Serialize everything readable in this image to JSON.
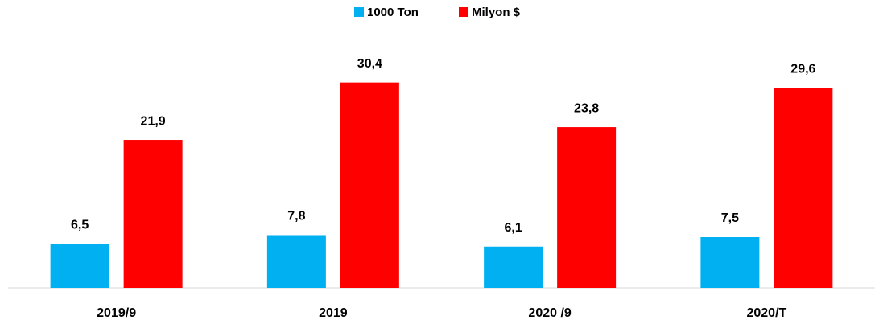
{
  "chart_data": {
    "type": "bar",
    "categories": [
      "2019/9",
      "2019",
      "2020 /9",
      "2020/T"
    ],
    "series": [
      {
        "name": "1000 Ton",
        "color": "#00b0f0",
        "values": [
          6.5,
          7.8,
          6.1,
          7.5
        ],
        "value_labels": [
          "6,5",
          "7,8",
          "6,1",
          "7,5"
        ]
      },
      {
        "name": "Milyon $",
        "color": "#ff0000",
        "values": [
          21.9,
          30.4,
          23.8,
          29.6
        ],
        "value_labels": [
          "21,9",
          "30,4",
          "23,8",
          "29,6"
        ]
      }
    ],
    "ylim": [
      0,
      35
    ],
    "legend": "top"
  }
}
